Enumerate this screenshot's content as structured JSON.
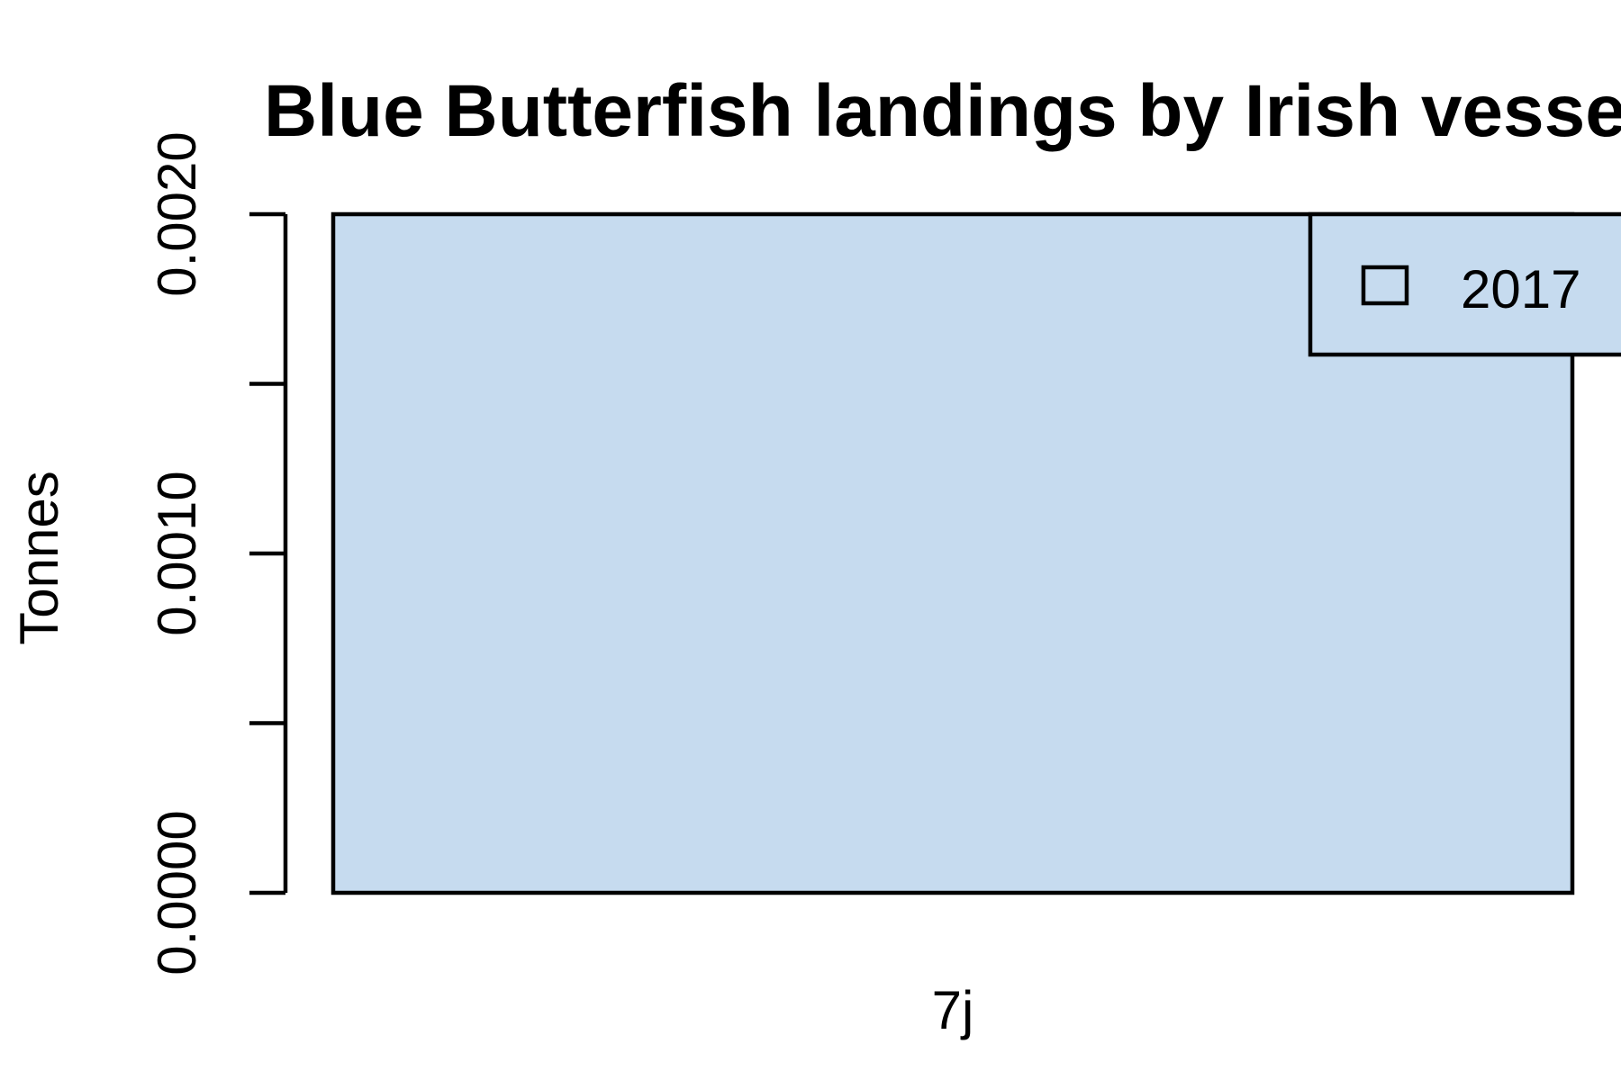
{
  "chart_data": {
    "type": "bar",
    "title": "Blue Butterfish landings by Irish vessels",
    "xlabel": "",
    "ylabel": "Tonnes",
    "categories": [
      "7j"
    ],
    "series": [
      {
        "name": "2017",
        "values": [
          0.002
        ]
      }
    ],
    "ylim": [
      0,
      0.002
    ],
    "yticks": [
      0,
      0.0005,
      0.001,
      0.0015,
      0.002
    ],
    "ytick_labels": [
      "0.0000",
      "0.0010",
      "0.0020"
    ],
    "ytick_labeled_values": [
      0,
      0.001,
      0.002
    ],
    "grid": false,
    "legend_position": "top-right",
    "colors": {
      "bar_fill": "#c6dbef",
      "stroke": "#000000"
    }
  }
}
